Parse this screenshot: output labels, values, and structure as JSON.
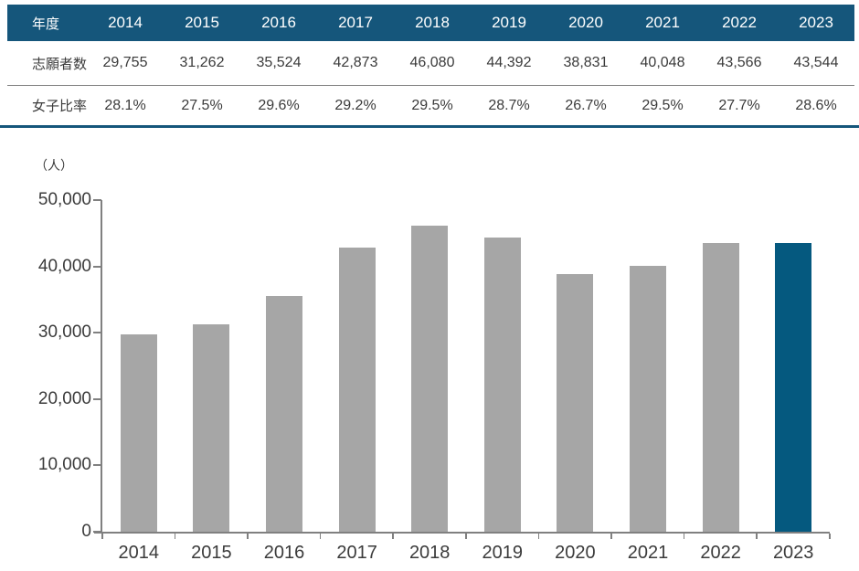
{
  "table": {
    "header": {
      "label": "年度",
      "years": [
        "2014",
        "2015",
        "2016",
        "2017",
        "2018",
        "2019",
        "2020",
        "2021",
        "2022",
        "2023"
      ]
    },
    "rows": [
      {
        "id": "applicants",
        "label": "志願者数",
        "values": [
          "29,755",
          "31,262",
          "35,524",
          "42,873",
          "46,080",
          "44,392",
          "38,831",
          "40,048",
          "43,566",
          "43,544"
        ]
      },
      {
        "id": "female-ratio",
        "label": "女子比率",
        "values": [
          "28.1%",
          "27.5%",
          "29.6%",
          "29.2%",
          "29.5%",
          "28.7%",
          "26.7%",
          "29.5%",
          "27.7%",
          "28.6%"
        ]
      }
    ]
  },
  "chart_data": {
    "type": "bar",
    "title": "",
    "unit_label": "（人）",
    "categories": [
      "2014",
      "2015",
      "2016",
      "2017",
      "2018",
      "2019",
      "2020",
      "2021",
      "2022",
      "2023"
    ],
    "values": [
      29755,
      31262,
      35524,
      42873,
      46080,
      44392,
      38831,
      40048,
      43566,
      43544
    ],
    "ylim": [
      0,
      50000
    ],
    "yticks": [
      0,
      10000,
      20000,
      30000,
      40000,
      50000
    ],
    "ytick_labels": [
      "0",
      "10,000",
      "20,000",
      "30,000",
      "40,000",
      "50,000"
    ],
    "grid": false,
    "legend": false,
    "bar_color": "#A6A6A6",
    "highlight_color": "#05597F",
    "highlight_index": 9
  },
  "colors": {
    "header_bg": "#15567B",
    "header_text": "#FFFFFF",
    "divider": "#15567B",
    "row_separator": "#7F7F7F",
    "axis": "#808080",
    "text": "#3B3B3B"
  }
}
